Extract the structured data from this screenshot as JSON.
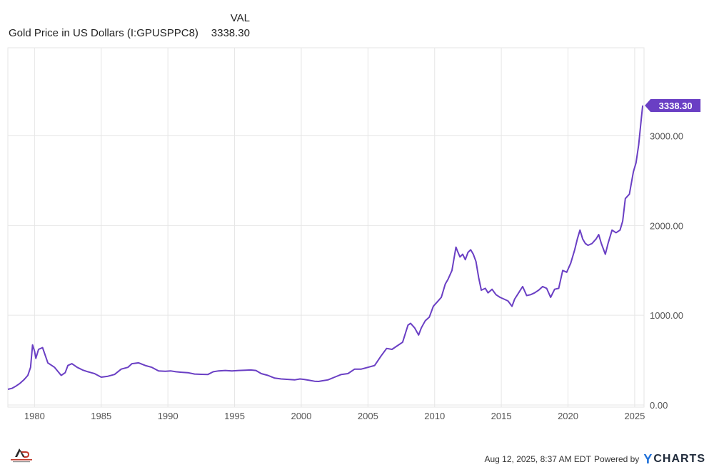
{
  "legend": {
    "column_header": "VAL",
    "series_name": "Gold Price in US Dollars (I:GPUSPPC8)",
    "series_value": "3338.30"
  },
  "footer": {
    "timestamp": "Aug 12, 2025, 8:37 AM EDT",
    "powered_by": "Powered by",
    "brand": "YCHARTS"
  },
  "logo": {
    "name": "Gonzalo Returns"
  },
  "colors": {
    "line": "#6a3fc4",
    "grid": "#e6e6e6",
    "axis_text": "#555555"
  },
  "chart_data": {
    "type": "line",
    "title": "",
    "xlabel": "",
    "ylabel": "",
    "xlim": [
      1978.0,
      2025.7
    ],
    "ylim": [
      0,
      3338.3
    ],
    "x_ticks": [
      1980,
      1985,
      1990,
      1995,
      2000,
      2005,
      2010,
      2015,
      2020,
      2025
    ],
    "x_tick_labels": [
      "1980",
      "1985",
      "1990",
      "1995",
      "2000",
      "2005",
      "2010",
      "2015",
      "2020",
      "2025"
    ],
    "y_ticks": [
      0,
      1000,
      2000,
      3000
    ],
    "y_tick_labels": [
      "0.00",
      "1000.00",
      "2000.00",
      "3000.00"
    ],
    "grid": true,
    "last_value_label": "3338.30",
    "series": [
      {
        "name": "Gold Price in US Dollars (I:GPUSPPC8)",
        "x": [
          1978.0,
          1978.3,
          1978.6,
          1978.9,
          1979.2,
          1979.5,
          1979.7,
          1979.85,
          1980.0,
          1980.1,
          1980.3,
          1980.6,
          1981.0,
          1981.5,
          1982.0,
          1982.3,
          1982.5,
          1982.8,
          1983.2,
          1983.6,
          1984.0,
          1984.5,
          1985.0,
          1985.5,
          1986.0,
          1986.5,
          1987.0,
          1987.3,
          1987.8,
          1988.3,
          1988.8,
          1989.3,
          1989.8,
          1990.2,
          1990.6,
          1991.0,
          1991.5,
          1992.0,
          1992.5,
          1993.0,
          1993.4,
          1993.8,
          1994.3,
          1994.8,
          1995.3,
          1995.8,
          1996.2,
          1996.6,
          1997.0,
          1997.5,
          1998.0,
          1998.5,
          1999.0,
          1999.5,
          1999.9,
          2000.2,
          2000.6,
          2001.0,
          2001.3,
          2001.6,
          2002.0,
          2002.5,
          2003.0,
          2003.5,
          2004.0,
          2004.5,
          2005.0,
          2005.5,
          2006.0,
          2006.4,
          2006.8,
          2007.2,
          2007.6,
          2008.0,
          2008.2,
          2008.5,
          2008.8,
          2009.0,
          2009.3,
          2009.6,
          2009.9,
          2010.2,
          2010.5,
          2010.8,
          2011.0,
          2011.3,
          2011.6,
          2011.7,
          2011.9,
          2012.1,
          2012.3,
          2012.5,
          2012.7,
          2012.9,
          2013.1,
          2013.3,
          2013.5,
          2013.8,
          2014.0,
          2014.3,
          2014.6,
          2014.9,
          2015.2,
          2015.5,
          2015.8,
          2016.0,
          2016.3,
          2016.6,
          2016.9,
          2017.2,
          2017.5,
          2017.8,
          2018.1,
          2018.4,
          2018.7,
          2019.0,
          2019.3,
          2019.6,
          2019.9,
          2020.2,
          2020.5,
          2020.7,
          2020.9,
          2021.1,
          2021.3,
          2021.5,
          2021.8,
          2022.1,
          2022.3,
          2022.5,
          2022.8,
          2023.0,
          2023.3,
          2023.6,
          2023.9,
          2024.1,
          2024.3,
          2024.6,
          2024.9,
          2025.1,
          2025.3,
          2025.5,
          2025.6
        ],
        "y": [
          175,
          185,
          210,
          240,
          280,
          330,
          420,
          670,
          600,
          520,
          620,
          640,
          470,
          420,
          330,
          360,
          440,
          460,
          420,
          390,
          370,
          350,
          310,
          320,
          340,
          400,
          420,
          460,
          470,
          440,
          420,
          380,
          375,
          380,
          370,
          365,
          360,
          345,
          342,
          340,
          370,
          380,
          385,
          380,
          385,
          388,
          390,
          385,
          350,
          330,
          300,
          290,
          285,
          280,
          290,
          285,
          275,
          265,
          262,
          270,
          280,
          310,
          340,
          350,
          400,
          400,
          420,
          440,
          550,
          630,
          620,
          660,
          700,
          890,
          910,
          860,
          780,
          860,
          940,
          980,
          1100,
          1150,
          1200,
          1350,
          1400,
          1500,
          1760,
          1720,
          1650,
          1680,
          1620,
          1700,
          1730,
          1680,
          1600,
          1420,
          1280,
          1300,
          1250,
          1290,
          1230,
          1200,
          1180,
          1160,
          1100,
          1180,
          1250,
          1320,
          1220,
          1230,
          1250,
          1280,
          1320,
          1300,
          1200,
          1290,
          1300,
          1500,
          1480,
          1580,
          1730,
          1850,
          1950,
          1850,
          1800,
          1780,
          1800,
          1850,
          1900,
          1800,
          1680,
          1800,
          1950,
          1920,
          1950,
          2050,
          2300,
          2350,
          2600,
          2700,
          2900,
          3200,
          3338.3
        ]
      }
    ]
  }
}
